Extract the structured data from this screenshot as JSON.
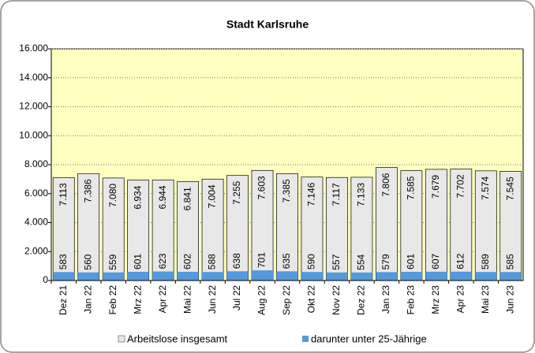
{
  "chart_data": {
    "type": "bar",
    "barmode": "overlay",
    "title": "Stadt Karlsruhe",
    "categories": [
      "Dez 21",
      "Jan 22",
      "Feb 22",
      "Mrz 22",
      "Apr 22",
      "Mai 22",
      "Jun 22",
      "Jul 22",
      "Aug 22",
      "Sep 22",
      "Okt 22",
      "Nov 22",
      "Dez 22",
      "Jan 23",
      "Feb 23",
      "Mrz 23",
      "Apr 23",
      "Mai 23",
      "Jun 23"
    ],
    "series": [
      {
        "name": "Arbeitslose insgesamt",
        "color": "#e8e8e8",
        "values": [
          7113,
          7386,
          7080,
          6934,
          6944,
          6841,
          7004,
          7255,
          7603,
          7385,
          7146,
          7117,
          7133,
          7806,
          7585,
          7679,
          7702,
          7574,
          7545
        ],
        "value_labels": [
          "7.113",
          "7.386",
          "7.080",
          "6.934",
          "6.944",
          "6.841",
          "7.004",
          "7.255",
          "7.603",
          "7.385",
          "7.146",
          "7.117",
          "7.133",
          "7.806",
          "7.585",
          "7.679",
          "7.702",
          "7.574",
          "7.545"
        ]
      },
      {
        "name": "darunter unter 25-Jährige",
        "color": "#5599dd",
        "values": [
          583,
          560,
          559,
          601,
          623,
          602,
          588,
          638,
          701,
          635,
          590,
          557,
          554,
          579,
          601,
          607,
          612,
          589,
          585
        ]
      }
    ],
    "ylim": [
      0,
      16000
    ],
    "yticks": [
      0,
      {
        "value": 2000,
        "label": "2.000"
      },
      {
        "value": 4000,
        "label": "4.000"
      },
      {
        "value": 6000,
        "label": "6.000"
      },
      {
        "value": 8000,
        "label": "8.000"
      },
      {
        "value": 10000,
        "label": "10.000"
      },
      {
        "value": 12000,
        "label": "12.000"
      },
      {
        "value": 14000,
        "label": "14.000"
      },
      {
        "value": 16000,
        "label": "16.000"
      }
    ],
    "grid": true,
    "legend": "bottom",
    "plot_background": "#ffffc0"
  }
}
